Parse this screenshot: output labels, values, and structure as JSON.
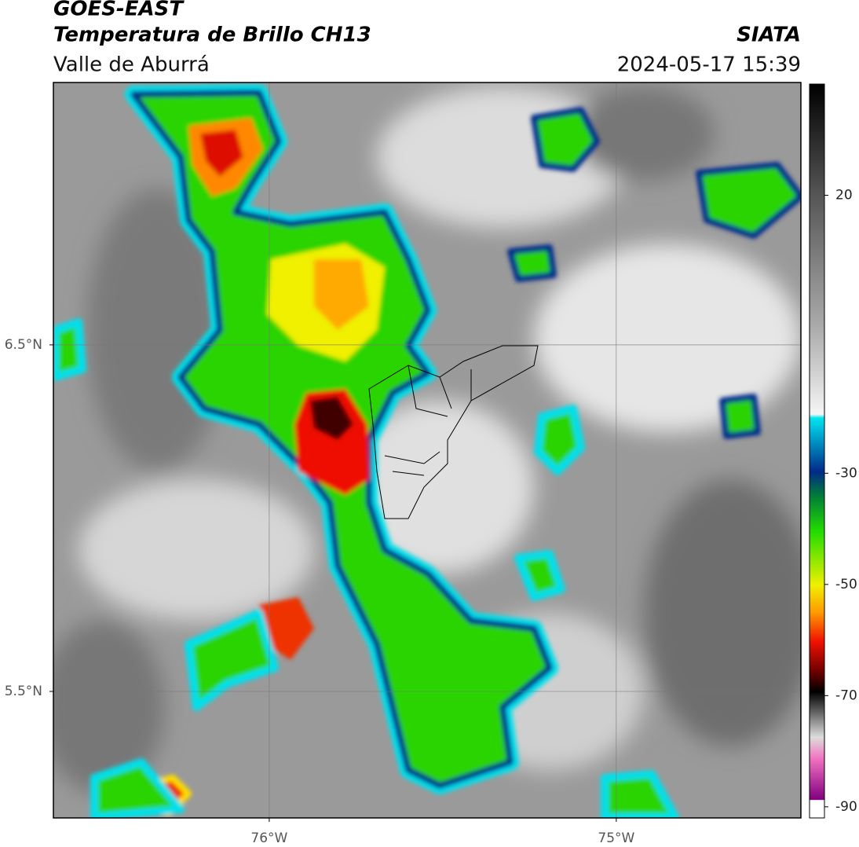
{
  "header": {
    "title": "GOES-EAST",
    "subtitle": "Temperatura de Brillo CH13",
    "region": "Valle de Aburrá",
    "source": "SIATA",
    "timestamp": "2024-05-17 15:39"
  },
  "map": {
    "xlim": [
      -76.622,
      -74.468
    ],
    "ylim": [
      5.135,
      7.257
    ],
    "xticks": [
      {
        "value": -76,
        "label": "76°W"
      },
      {
        "value": -75,
        "label": "75°W"
      }
    ],
    "yticks": [
      {
        "value": 6.5,
        "label": "6.5°N"
      },
      {
        "value": 5.5,
        "label": "5.5°N"
      }
    ],
    "grid": true
  },
  "colorbar": {
    "clim": [
      -92,
      40
    ],
    "ticks": [
      20,
      -30,
      -50,
      -70,
      -90
    ]
  }
}
